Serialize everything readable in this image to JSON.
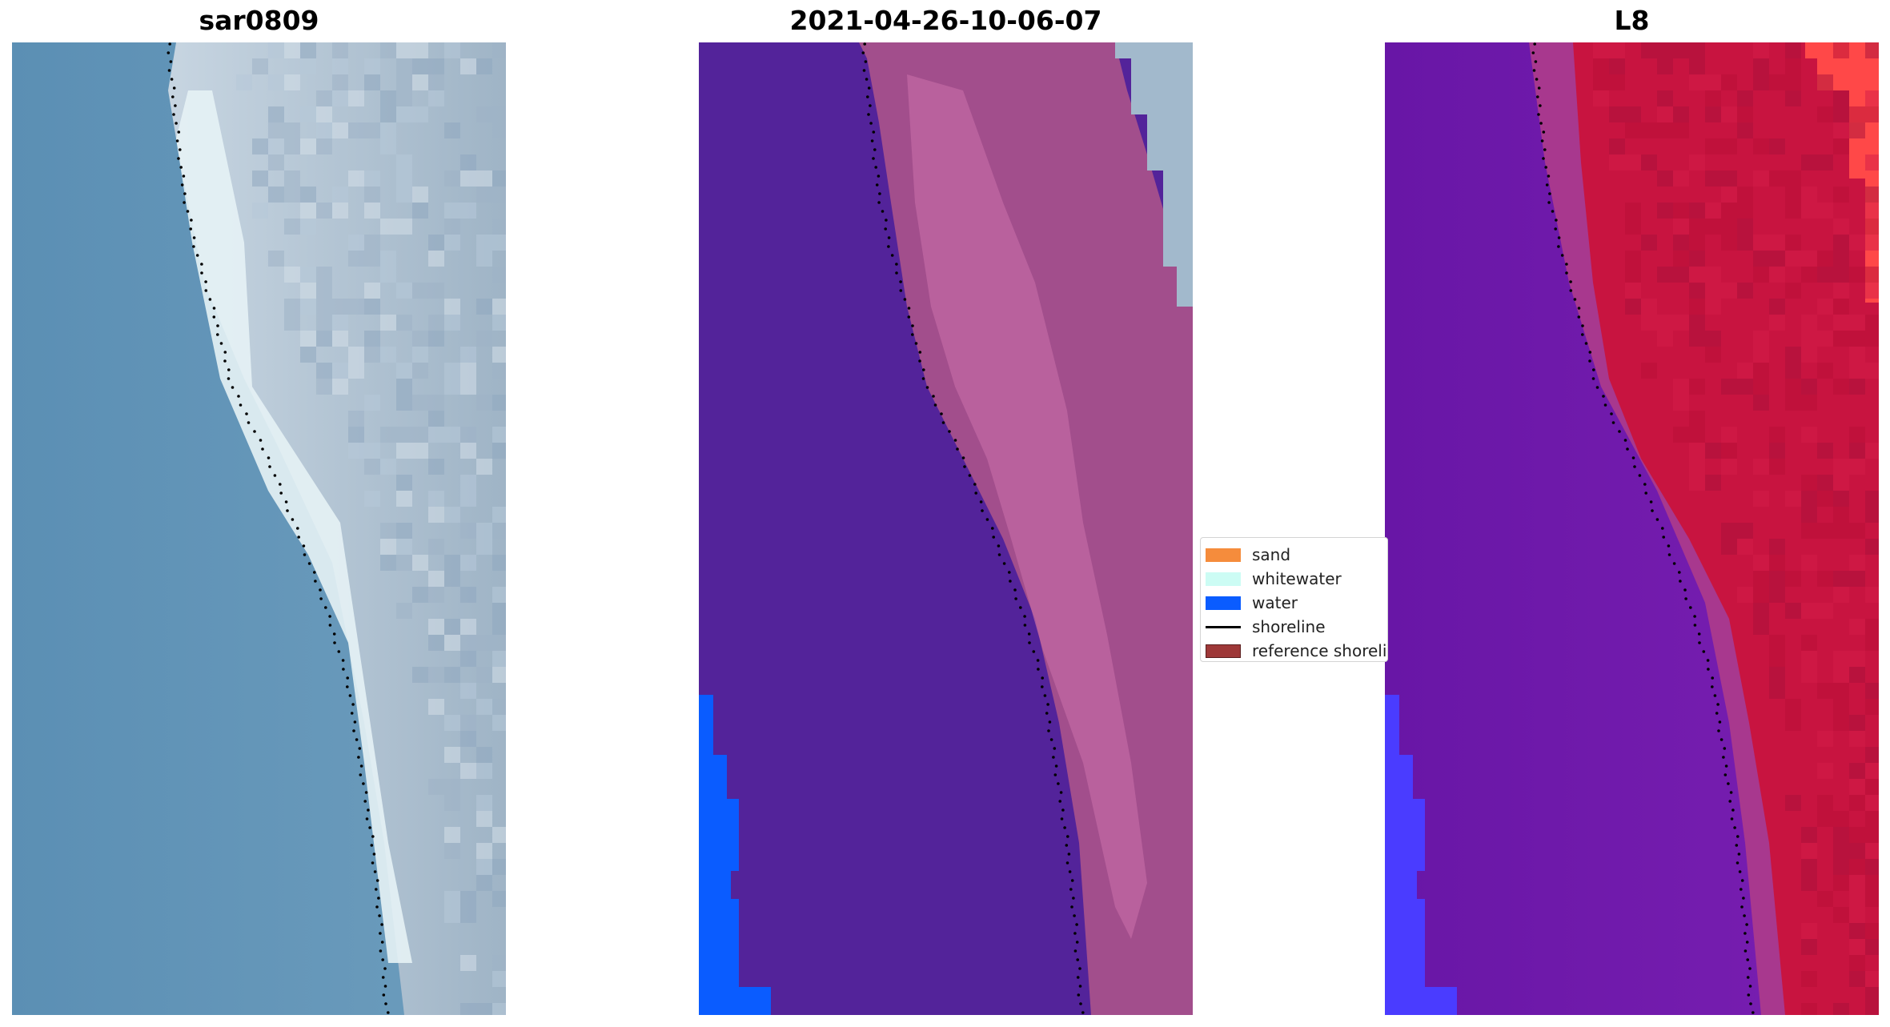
{
  "panels": [
    {
      "title": "sar0809"
    },
    {
      "title": "2021-04-26-10-06-07"
    },
    {
      "title": "L8"
    }
  ],
  "legend": {
    "items": [
      {
        "label": "sand",
        "color": "#f58c3c"
      },
      {
        "label": "whitewater",
        "color": "#ccfcf4"
      },
      {
        "label": "water",
        "color": "#0a5cff"
      },
      {
        "label": "shoreline",
        "color": "#000000"
      },
      {
        "label": "reference shoreline",
        "color": "#9e3838"
      }
    ]
  },
  "colors": {
    "sea_rgb": "#5f92b8",
    "land_rgb": "#a8bccd",
    "surf_rgb": "#e8f4f6",
    "class_water_dark": "#53239a",
    "class_sand_tint": "#a44e8c",
    "class_water": "#0a5cff",
    "ndwi_water": "#6c18aa",
    "ndwi_land": "#c8123a",
    "ndwi_edge": "#ff4a4a",
    "ndwi_blue": "#4a40ff"
  }
}
